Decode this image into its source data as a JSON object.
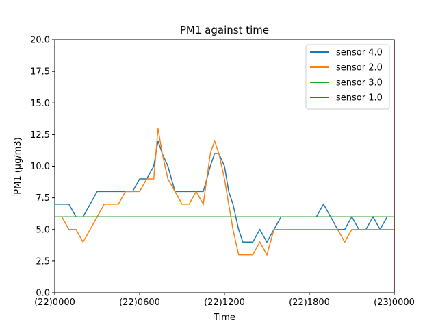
{
  "chart_data": {
    "type": "line",
    "title": "PM1 against  time",
    "xlabel": "Time",
    "ylabel": "PM1 (μg/m3)",
    "xlim": [
      0,
      24
    ],
    "ylim": [
      0,
      20
    ],
    "x_ticks": [
      {
        "value": 0,
        "label": "(22)0000"
      },
      {
        "value": 6,
        "label": "(22)0600"
      },
      {
        "value": 12,
        "label": "(22)1200"
      },
      {
        "value": 18,
        "label": "(22)1800"
      },
      {
        "value": 24,
        "label": "(23)0000"
      }
    ],
    "y_ticks": [
      {
        "value": 0,
        "label": "0.0"
      },
      {
        "value": 2.5,
        "label": "2.5"
      },
      {
        "value": 5,
        "label": "5.0"
      },
      {
        "value": 7.5,
        "label": "7.5"
      },
      {
        "value": 10,
        "label": "10.0"
      },
      {
        "value": 12.5,
        "label": "12.5"
      },
      {
        "value": 15,
        "label": "15.0"
      },
      {
        "value": 17.5,
        "label": "17.5"
      },
      {
        "value": 20,
        "label": "20.0"
      }
    ],
    "legend_position": "top-right",
    "series": [
      {
        "name": "sensor 4.0",
        "color": "#1f77b4",
        "x": [
          0,
          0.5,
          1,
          1.5,
          2,
          2.5,
          3,
          3.5,
          4,
          4.5,
          5,
          5.5,
          6,
          6.5,
          7,
          7.3,
          7.6,
          8,
          8.5,
          9,
          9.5,
          10,
          10.5,
          11,
          11.3,
          11.6,
          12,
          12.3,
          12.6,
          13,
          13.3,
          13.6,
          14,
          14.5,
          15,
          15.5,
          16,
          16.5,
          17,
          17.5,
          18,
          18.5,
          19,
          19.5,
          20,
          20.5,
          21,
          21.5,
          22,
          22.5,
          23,
          23.5,
          24
        ],
        "y": [
          7,
          7,
          7,
          6,
          6,
          7,
          8,
          8,
          8,
          8,
          8,
          8,
          9,
          9,
          10,
          12,
          11,
          10,
          8,
          8,
          8,
          8,
          8,
          10,
          11,
          11,
          10,
          8,
          7,
          5,
          4,
          4,
          4,
          5,
          4,
          5,
          6,
          6,
          6,
          6,
          6,
          6,
          7,
          6,
          5,
          5,
          6,
          5,
          5,
          6,
          5,
          6,
          6
        ]
      },
      {
        "name": "sensor 2.0",
        "color": "#ff7f0e",
        "x": [
          0,
          0.5,
          1,
          1.5,
          2,
          2.5,
          3,
          3.5,
          4,
          4.5,
          5,
          5.5,
          6,
          6.5,
          7,
          7.3,
          7.6,
          8,
          8.5,
          9,
          9.5,
          10,
          10.5,
          11,
          11.3,
          11.6,
          12,
          12.3,
          12.6,
          13,
          13.3,
          13.6,
          14,
          14.5,
          15,
          15.5,
          16,
          16.5,
          17,
          17.5,
          18,
          18.5,
          19,
          19.5,
          20,
          20.5,
          21,
          21.5,
          22,
          22.5,
          23,
          23.5,
          24
        ],
        "y": [
          6,
          6,
          5,
          5,
          4,
          5,
          6,
          7,
          7,
          7,
          8,
          8,
          8,
          9,
          9,
          13,
          11,
          9,
          8,
          7,
          7,
          8,
          7,
          11,
          12,
          11,
          9,
          7,
          5,
          3,
          3,
          3,
          3,
          4,
          3,
          5,
          5,
          5,
          5,
          5,
          5,
          5,
          5,
          5,
          5,
          4,
          5,
          5,
          5,
          5,
          5,
          5,
          5
        ]
      },
      {
        "name": "sensor 3.0",
        "color": "#2ca02c",
        "x": [
          0,
          24
        ],
        "y": [
          6,
          6
        ]
      },
      {
        "name": "sensor 1.0",
        "color": "#d62728",
        "x": [
          24,
          24
        ],
        "y": [
          0,
          20
        ]
      }
    ]
  }
}
